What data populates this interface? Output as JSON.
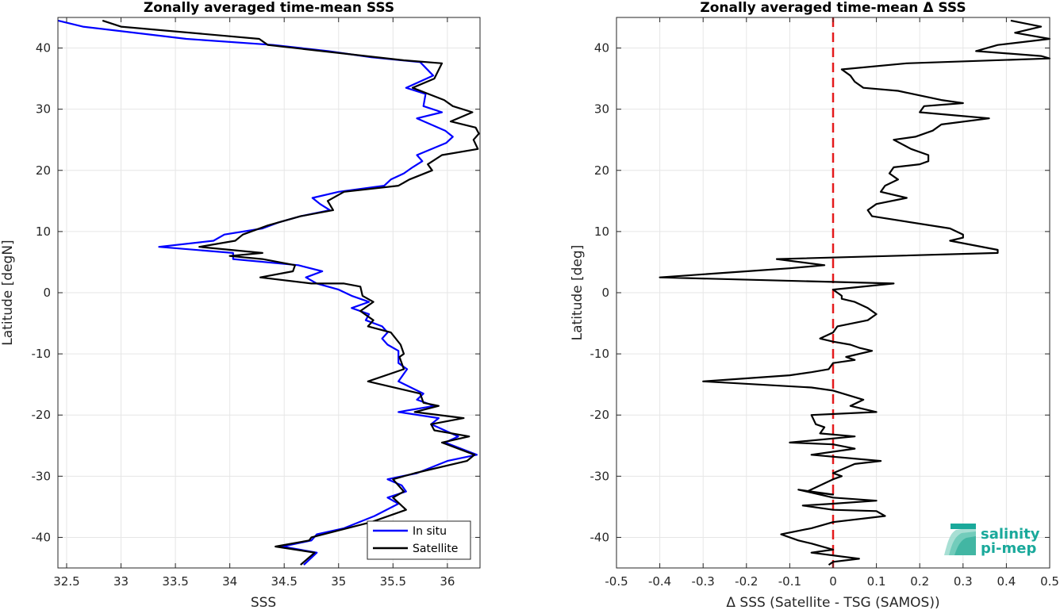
{
  "logo": {
    "line1": "salinity",
    "line2": "pi-mep",
    "color": "#1aa99b"
  },
  "chart_data": [
    {
      "type": "line",
      "title": "Zonally averaged time-mean SSS",
      "xlabel": "SSS",
      "ylabel": "Latitude [degN]",
      "xlim": [
        32.42,
        36.3
      ],
      "ylim": [
        -45,
        45
      ],
      "xticks": [
        32.5,
        33,
        33.5,
        34,
        34.5,
        35,
        35.5,
        36
      ],
      "xtick_labels": [
        "32.5",
        "33",
        "33.5",
        "34",
        "34.5",
        "35",
        "35.5",
        "36"
      ],
      "yticks": [
        -40,
        -30,
        -20,
        -10,
        0,
        10,
        20,
        30,
        40
      ],
      "ytick_labels": [
        "-40",
        "-30",
        "-20",
        "-10",
        "0",
        "10",
        "20",
        "30",
        "40"
      ],
      "grid": true,
      "legend": "bottom-right",
      "series": [
        {
          "name": "In situ",
          "color": "#0000ff",
          "points": [
            [
              32.42,
              44.5
            ],
            [
              32.65,
              43.5
            ],
            [
              33.6,
              41.5
            ],
            [
              34.4,
              40.5
            ],
            [
              34.9,
              39.5
            ],
            [
              35.3,
              38.5
            ],
            [
              35.75,
              37.7
            ],
            [
              35.87,
              35.5
            ],
            [
              35.62,
              33.5
            ],
            [
              35.8,
              32.5
            ],
            [
              35.78,
              30.5
            ],
            [
              35.95,
              29.5
            ],
            [
              35.72,
              28.5
            ],
            [
              35.98,
              26.5
            ],
            [
              36.05,
              25.5
            ],
            [
              35.99,
              24.5
            ],
            [
              35.72,
              22.5
            ],
            [
              35.77,
              21.5
            ],
            [
              35.68,
              20.5
            ],
            [
              35.6,
              19.5
            ],
            [
              35.48,
              18.5
            ],
            [
              35.42,
              17.5
            ],
            [
              35.0,
              16.5
            ],
            [
              34.76,
              15.5
            ],
            [
              34.83,
              14.5
            ],
            [
              34.92,
              13.5
            ],
            [
              34.65,
              12.5
            ],
            [
              34.45,
              11.5
            ],
            [
              34.3,
              10.5
            ],
            [
              33.95,
              9.5
            ],
            [
              33.85,
              8.5
            ],
            [
              33.35,
              7.5
            ],
            [
              34.03,
              6.5
            ],
            [
              34.03,
              5.5
            ],
            [
              34.63,
              4.5
            ],
            [
              34.85,
              3.5
            ],
            [
              34.7,
              2.5
            ],
            [
              34.8,
              1.5
            ],
            [
              35.0,
              0.5
            ],
            [
              35.12,
              -0.5
            ],
            [
              35.28,
              -1.5
            ],
            [
              35.12,
              -2.5
            ],
            [
              35.28,
              -3.5
            ],
            [
              35.25,
              -4.5
            ],
            [
              35.4,
              -5.5
            ],
            [
              35.45,
              -6.5
            ],
            [
              35.4,
              -7.5
            ],
            [
              35.45,
              -8.5
            ],
            [
              35.55,
              -9.5
            ],
            [
              35.55,
              -11.5
            ],
            [
              35.63,
              -12.5
            ],
            [
              35.55,
              -14.5
            ],
            [
              35.78,
              -16.5
            ],
            [
              35.72,
              -17.5
            ],
            [
              35.88,
              -18.5
            ],
            [
              35.55,
              -19.5
            ],
            [
              35.92,
              -20.5
            ],
            [
              35.85,
              -21.5
            ],
            [
              36.1,
              -23.5
            ],
            [
              35.98,
              -24.5
            ],
            [
              36.27,
              -26.5
            ],
            [
              36.0,
              -27.5
            ],
            [
              35.72,
              -29.5
            ],
            [
              35.45,
              -30.5
            ],
            [
              35.58,
              -31.5
            ],
            [
              35.62,
              -32.5
            ],
            [
              35.45,
              -33.5
            ],
            [
              35.55,
              -34.5
            ],
            [
              35.33,
              -36.5
            ],
            [
              35.05,
              -38.5
            ],
            [
              34.8,
              -39.5
            ],
            [
              34.75,
              -40.5
            ],
            [
              34.48,
              -41.5
            ],
            [
              34.8,
              -42.5
            ],
            [
              34.68,
              -44.5
            ]
          ]
        },
        {
          "name": "Satellite",
          "color": "#000000",
          "points": [
            [
              32.83,
              44.5
            ],
            [
              33.0,
              43.5
            ],
            [
              34.27,
              41.5
            ],
            [
              34.35,
              40.5
            ],
            [
              35.6,
              38.0
            ],
            [
              35.95,
              37.5
            ],
            [
              35.88,
              35.0
            ],
            [
              35.68,
              33.5
            ],
            [
              35.97,
              31.5
            ],
            [
              36.05,
              30.5
            ],
            [
              36.23,
              29.5
            ],
            [
              36.03,
              28.0
            ],
            [
              36.26,
              27.0
            ],
            [
              36.29,
              26.0
            ],
            [
              36.24,
              25.0
            ],
            [
              36.28,
              23.5
            ],
            [
              35.95,
              22.5
            ],
            [
              35.82,
              21.0
            ],
            [
              35.86,
              20.0
            ],
            [
              35.65,
              18.5
            ],
            [
              35.55,
              17.5
            ],
            [
              35.05,
              16.5
            ],
            [
              34.9,
              15.0
            ],
            [
              34.95,
              13.5
            ],
            [
              34.65,
              12.5
            ],
            [
              34.35,
              11.0
            ],
            [
              34.12,
              9.5
            ],
            [
              34.05,
              8.5
            ],
            [
              33.72,
              7.5
            ],
            [
              34.3,
              6.5
            ],
            [
              34.0,
              6.0
            ],
            [
              34.3,
              5.5
            ],
            [
              34.6,
              4.5
            ],
            [
              34.58,
              3.5
            ],
            [
              34.28,
              2.5
            ],
            [
              34.75,
              1.5
            ],
            [
              35.05,
              1.5
            ],
            [
              35.2,
              1.0
            ],
            [
              35.22,
              -0.5
            ],
            [
              35.32,
              -1.5
            ],
            [
              35.2,
              -3.0
            ],
            [
              35.32,
              -4.5
            ],
            [
              35.27,
              -5.5
            ],
            [
              35.48,
              -6.5
            ],
            [
              35.57,
              -8.5
            ],
            [
              35.6,
              -10.0
            ],
            [
              35.56,
              -10.5
            ],
            [
              35.6,
              -12.5
            ],
            [
              35.27,
              -14.5
            ],
            [
              35.75,
              -16.5
            ],
            [
              35.78,
              -18.0
            ],
            [
              35.92,
              -18.5
            ],
            [
              35.7,
              -19.5
            ],
            [
              36.15,
              -20.5
            ],
            [
              35.85,
              -21.5
            ],
            [
              35.88,
              -22.5
            ],
            [
              36.2,
              -23.5
            ],
            [
              35.95,
              -24.5
            ],
            [
              36.25,
              -26.5
            ],
            [
              36.18,
              -27.5
            ],
            [
              35.7,
              -29.5
            ],
            [
              35.5,
              -30.5
            ],
            [
              35.6,
              -32.5
            ],
            [
              35.5,
              -33.5
            ],
            [
              35.62,
              -35.5
            ],
            [
              35.3,
              -37.5
            ],
            [
              34.75,
              -40.0
            ],
            [
              34.73,
              -40.5
            ],
            [
              34.42,
              -41.5
            ],
            [
              34.78,
              -42.5
            ],
            [
              34.65,
              -44.5
            ]
          ]
        }
      ]
    },
    {
      "type": "line",
      "title": "Zonally averaged time-mean Δ SSS",
      "xlabel": "Δ SSS (Satellite - TSG (SAMOS))",
      "ylabel": "Latitude [deg]",
      "xlim": [
        -0.5,
        0.5
      ],
      "ylim": [
        -45,
        45
      ],
      "xticks": [
        -0.5,
        -0.4,
        -0.3,
        -0.2,
        -0.1,
        0,
        0.1,
        0.2,
        0.3,
        0.4,
        0.5
      ],
      "xtick_labels": [
        "-0.5",
        "-0.4",
        "-0.3",
        "-0.2",
        "-0.1",
        "0",
        "0.1",
        "0.2",
        "0.3",
        "0.4",
        "0.5"
      ],
      "yticks": [
        -40,
        -30,
        -20,
        -10,
        0,
        10,
        20,
        30,
        40
      ],
      "ytick_labels": [
        "-40",
        "-30",
        "-20",
        "-10",
        "0",
        "10",
        "20",
        "30",
        "40"
      ],
      "grid": true,
      "reference_line": {
        "x": 0,
        "color": "#e41a1c",
        "style": "dashed"
      },
      "series": [
        {
          "color": "#000000",
          "points": [
            [
              0.41,
              44.5
            ],
            [
              0.48,
              43.5
            ],
            [
              0.42,
              42.5
            ],
            [
              0.5,
              41.5
            ],
            [
              0.38,
              40.5
            ],
            [
              0.33,
              39.5
            ],
            [
              0.48,
              38.7
            ],
            [
              0.5,
              38.3
            ],
            [
              0.17,
              37.5
            ],
            [
              0.02,
              36.5
            ],
            [
              0.04,
              35.5
            ],
            [
              0.05,
              34.5
            ],
            [
              0.07,
              33.5
            ],
            [
              0.15,
              33.0
            ],
            [
              0.25,
              31.5
            ],
            [
              0.3,
              31.0
            ],
            [
              0.21,
              30.5
            ],
            [
              0.2,
              29.5
            ],
            [
              0.28,
              29.0
            ],
            [
              0.36,
              28.5
            ],
            [
              0.25,
              27.5
            ],
            [
              0.23,
              26.5
            ],
            [
              0.19,
              25.5
            ],
            [
              0.14,
              25.0
            ],
            [
              0.18,
              23.5
            ],
            [
              0.22,
              22.5
            ],
            [
              0.22,
              21.5
            ],
            [
              0.2,
              21.0
            ],
            [
              0.14,
              20.5
            ],
            [
              0.13,
              19.5
            ],
            [
              0.15,
              18.5
            ],
            [
              0.12,
              17.5
            ],
            [
              0.11,
              16.5
            ],
            [
              0.17,
              15.5
            ],
            [
              0.1,
              14.5
            ],
            [
              0.08,
              13.5
            ],
            [
              0.09,
              12.5
            ],
            [
              0.27,
              10.5
            ],
            [
              0.3,
              9.5
            ],
            [
              0.3,
              9.0
            ],
            [
              0.27,
              8.5
            ],
            [
              0.38,
              7.0
            ],
            [
              0.38,
              6.5
            ],
            [
              -0.13,
              5.5
            ],
            [
              -0.02,
              4.5
            ],
            [
              -0.1,
              4.0
            ],
            [
              -0.2,
              3.5
            ],
            [
              -0.4,
              2.5
            ],
            [
              0.14,
              1.5
            ],
            [
              0.0,
              0.5
            ],
            [
              0.02,
              -0.5
            ],
            [
              0.02,
              -1.0
            ],
            [
              0.05,
              -1.5
            ],
            [
              0.08,
              -2.5
            ],
            [
              0.1,
              -3.5
            ],
            [
              0.08,
              -4.5
            ],
            [
              0.01,
              -5.5
            ],
            [
              0.0,
              -6.5
            ],
            [
              -0.03,
              -7.5
            ],
            [
              0.0,
              -8.0
            ],
            [
              0.04,
              -8.5
            ],
            [
              0.06,
              -9.0
            ],
            [
              0.09,
              -9.5
            ],
            [
              0.03,
              -10.5
            ],
            [
              0.05,
              -11.0
            ],
            [
              0.0,
              -11.5
            ],
            [
              -0.01,
              -12.5
            ],
            [
              -0.05,
              -13.0
            ],
            [
              -0.1,
              -13.5
            ],
            [
              -0.3,
              -14.5
            ],
            [
              -0.05,
              -15.5
            ],
            [
              0.0,
              -16.0
            ],
            [
              0.07,
              -17.5
            ],
            [
              0.04,
              -18.5
            ],
            [
              0.1,
              -19.5
            ],
            [
              -0.05,
              -20.0
            ],
            [
              -0.04,
              -21.5
            ],
            [
              -0.02,
              -22.0
            ],
            [
              -0.03,
              -23.0
            ],
            [
              0.05,
              -23.5
            ],
            [
              -0.1,
              -24.5
            ],
            [
              0.0,
              -24.8
            ],
            [
              0.05,
              -25.5
            ],
            [
              -0.05,
              -26.5
            ],
            [
              0.11,
              -27.5
            ],
            [
              0.05,
              -28.0
            ],
            [
              0.0,
              -29.5
            ],
            [
              0.02,
              -30.0
            ],
            [
              0.0,
              -30.5
            ],
            [
              -0.06,
              -32.5
            ],
            [
              0.0,
              -33.0
            ],
            [
              -0.08,
              -32.2
            ],
            [
              0.0,
              -33.5
            ],
            [
              0.1,
              -34.0
            ],
            [
              0.0,
              -34.5
            ],
            [
              -0.07,
              -34.8
            ],
            [
              0.0,
              -35.5
            ],
            [
              0.1,
              -35.7
            ],
            [
              0.12,
              -36.5
            ],
            [
              0.0,
              -37.5
            ],
            [
              -0.05,
              -38.5
            ],
            [
              -0.12,
              -39.5
            ],
            [
              -0.08,
              -40.5
            ],
            [
              -0.05,
              -41.0
            ],
            [
              0.0,
              -42.0
            ],
            [
              -0.05,
              -42.5
            ],
            [
              0.06,
              -43.5
            ],
            [
              0.0,
              -44.0
            ],
            [
              -0.01,
              -44.5
            ]
          ]
        }
      ]
    }
  ]
}
